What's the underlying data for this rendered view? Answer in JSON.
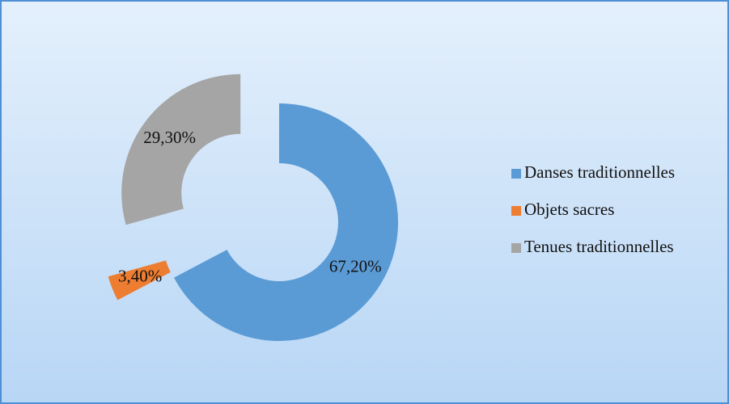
{
  "chart_data": {
    "type": "doughnut",
    "categories": [
      "Danses traditionnelles",
      "Objets sacres",
      "Tenues traditionnelles"
    ],
    "values": [
      67.2,
      3.4,
      29.3
    ],
    "value_labels": [
      "67,20%",
      "3,40%",
      "29,30%"
    ],
    "colors": [
      "#5b9bd5",
      "#ed7d31",
      "#a5a5a5"
    ],
    "legend": "right"
  }
}
